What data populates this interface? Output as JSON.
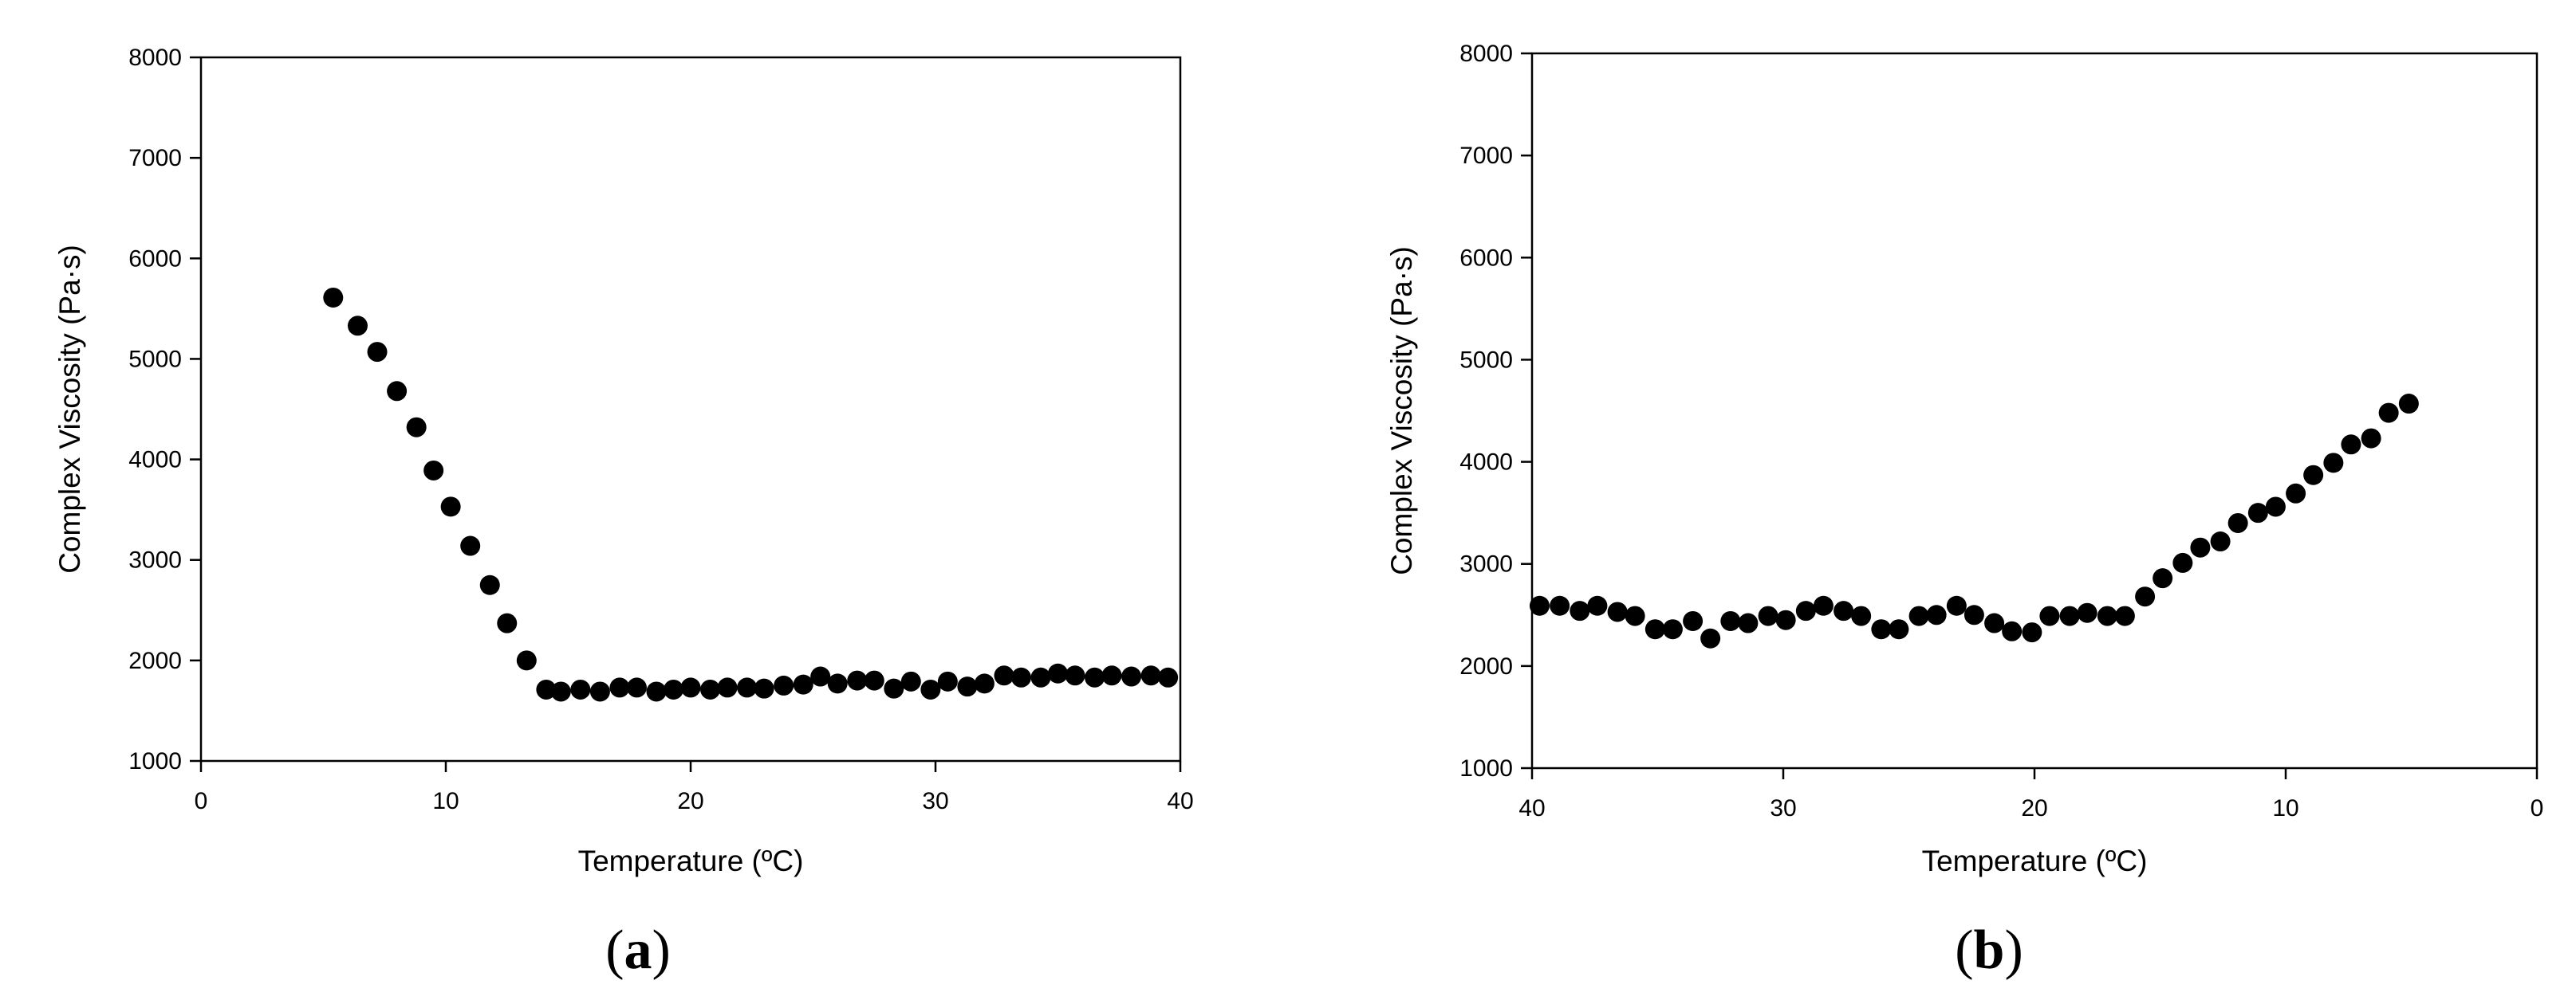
{
  "chart_data": [
    {
      "type": "scatter",
      "panel_label": "a",
      "xlabel": "Temperature (ºC)",
      "ylabel": "Complex Viscosity (Pa·s)",
      "xlim": [
        0,
        40
      ],
      "ylim": [
        1000,
        8000
      ],
      "x_reversed": false,
      "xticks": [
        0,
        10,
        20,
        30,
        40
      ],
      "yticks": [
        1000,
        2000,
        3000,
        4000,
        5000,
        6000,
        7000,
        8000
      ],
      "grid": false,
      "marker_color": "#000000",
      "series": [
        {
          "x": [
            5.4,
            6.4,
            7.2,
            8.0,
            8.8,
            9.5,
            10.2,
            11.0,
            11.8,
            12.5,
            13.3,
            14.1,
            14.7,
            15.5,
            16.3,
            17.1,
            17.8,
            18.6,
            19.3,
            20.0,
            20.8,
            21.5,
            22.3,
            23.0,
            23.8,
            24.6,
            25.3,
            26.0,
            26.8,
            27.5,
            28.3,
            29.0,
            29.8,
            30.5,
            31.3,
            32.0,
            32.8,
            33.5,
            34.3,
            35.0,
            35.7,
            36.5,
            37.2,
            38.0,
            38.8,
            39.5
          ],
          "y": [
            5610,
            5330,
            5070,
            4680,
            4320,
            3890,
            3530,
            3140,
            2750,
            2370,
            2000,
            1710,
            1690,
            1710,
            1690,
            1730,
            1730,
            1690,
            1710,
            1730,
            1710,
            1730,
            1730,
            1720,
            1750,
            1760,
            1840,
            1770,
            1800,
            1800,
            1720,
            1790,
            1710,
            1790,
            1740,
            1770,
            1850,
            1830,
            1830,
            1870,
            1850,
            1830,
            1850,
            1840,
            1850,
            1830
          ]
        }
      ]
    },
    {
      "type": "scatter",
      "panel_label": "b",
      "xlabel": "Temperature (ºC)",
      "ylabel": "Complex Viscosity (Pa·s)",
      "xlim": [
        40,
        0
      ],
      "ylim": [
        1000,
        8000
      ],
      "x_reversed": true,
      "xticks": [
        40,
        30,
        20,
        10,
        0
      ],
      "yticks": [
        1000,
        2000,
        3000,
        4000,
        5000,
        6000,
        7000,
        8000
      ],
      "grid": false,
      "marker_color": "#000000",
      "series": [
        {
          "x": [
            39.7,
            38.9,
            38.1,
            37.4,
            36.6,
            35.9,
            35.1,
            34.4,
            33.6,
            32.9,
            32.1,
            31.4,
            30.6,
            29.9,
            29.1,
            28.4,
            27.6,
            26.9,
            26.1,
            25.4,
            24.6,
            23.9,
            23.1,
            22.4,
            21.6,
            20.9,
            20.1,
            19.4,
            18.6,
            17.9,
            17.1,
            16.4,
            15.6,
            14.9,
            14.1,
            13.4,
            12.6,
            11.9,
            11.1,
            10.4,
            9.6,
            8.9,
            8.1,
            7.4,
            6.6,
            5.9,
            5.1
          ],
          "y": [
            2590,
            2590,
            2540,
            2590,
            2530,
            2490,
            2360,
            2360,
            2440,
            2270,
            2440,
            2420,
            2490,
            2450,
            2540,
            2590,
            2540,
            2490,
            2360,
            2360,
            2490,
            2500,
            2590,
            2500,
            2420,
            2340,
            2330,
            2490,
            2490,
            2520,
            2490,
            2490,
            2680,
            2860,
            3010,
            3160,
            3220,
            3400,
            3500,
            3560,
            3690,
            3870,
            3990,
            4170,
            4230,
            4480,
            4570
          ]
        }
      ]
    }
  ]
}
